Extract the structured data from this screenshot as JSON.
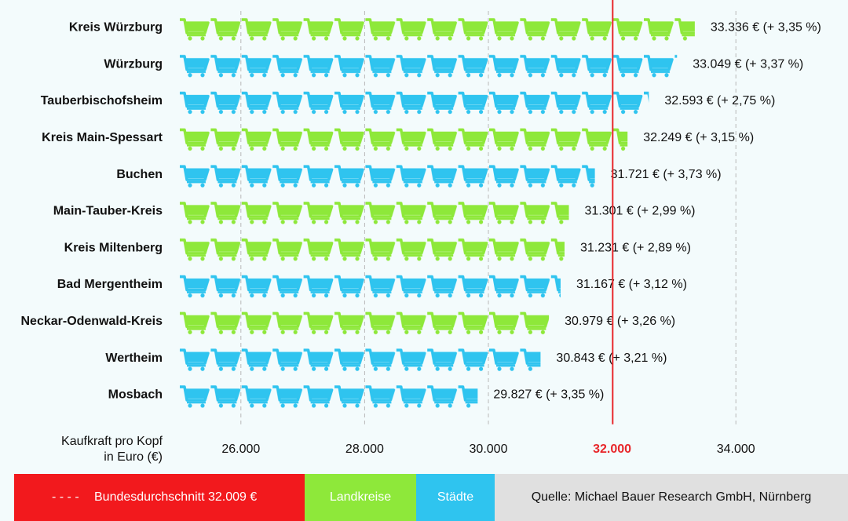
{
  "chart_data": {
    "type": "bar",
    "orientation": "horizontal",
    "categories": [
      "Kreis Würzburg",
      "Würzburg",
      "Tauberbischofsheim",
      "Kreis Main-Spessart",
      "Buchen",
      "Main-Tauber-Kreis",
      "Kreis Miltenberg",
      "Bad Mergentheim",
      "Neckar-Odenwald-Kreis",
      "Wertheim",
      "Mosbach"
    ],
    "values": [
      33336,
      33049,
      32593,
      32249,
      31721,
      31301,
      31231,
      31167,
      30979,
      30843,
      29827
    ],
    "value_labels": [
      "33.336 € (+ 3,35 %)",
      "33.049 € (+ 3,37 %)",
      "32.593 € (+ 2,75 %)",
      "32.249 € (+ 3,15 %)",
      "31.721 € (+ 3,73 %)",
      "31.301 € (+ 2,99 %)",
      "31.231 € (+ 2,89 %)",
      "31.167 € (+ 3,12 %)",
      "30.979 € (+ 3,26 %)",
      "30.843 € (+ 3,21 %)",
      "29.827 € (+ 3,35 %)"
    ],
    "groups": [
      {
        "name": "Landkreise",
        "color": "#8ee83a"
      },
      {
        "name": "Städte",
        "color": "#2fc4ef"
      }
    ],
    "group_of": [
      0,
      1,
      1,
      0,
      1,
      0,
      0,
      1,
      0,
      1,
      1
    ],
    "xlim": [
      25000,
      35000
    ],
    "xticks": [
      {
        "value": 26000,
        "label": "26.000"
      },
      {
        "value": 28000,
        "label": "28.000"
      },
      {
        "value": 30000,
        "label": "30.000"
      },
      {
        "value": 32000,
        "label": "32.000"
      },
      {
        "value": 34000,
        "label": "34.000"
      }
    ],
    "highlight_tick": 3,
    "x_label": [
      "Kaufkraft pro Kopf",
      "in Euro (€)"
    ],
    "grid": true,
    "reference_line": {
      "value": 32009,
      "label": "Bundesdurchschnitt 32.009 €",
      "color": "#e8262a"
    },
    "source": "Quelle: Michael Bauer Research GmbH, Nürnberg"
  }
}
